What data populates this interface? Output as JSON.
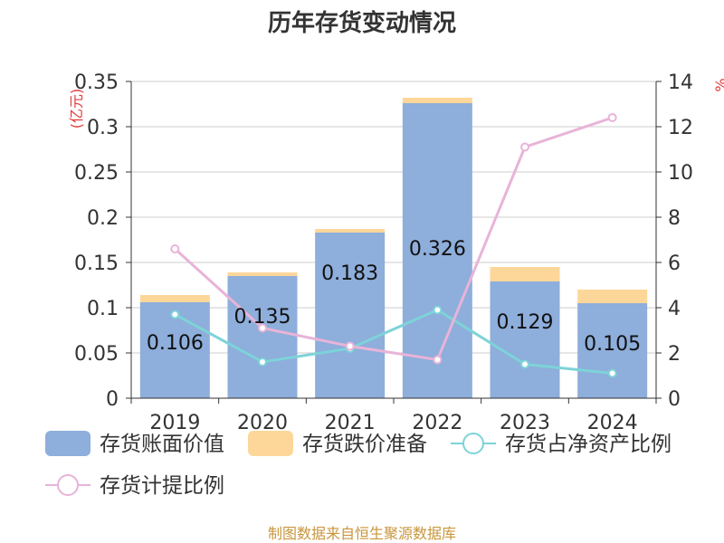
{
  "chart_data": {
    "type": "bar",
    "title": "历年存货变动情况",
    "unit_left": "(亿元)",
    "unit_right": "%",
    "categories": [
      "2019",
      "2020",
      "2021",
      "2022",
      "2023",
      "2024"
    ],
    "left_axis": {
      "ylim": [
        0,
        0.35
      ],
      "ticks": [
        "0",
        "0.05",
        "0.1",
        "0.15",
        "0.2",
        "0.25",
        "0.3",
        "0.35"
      ]
    },
    "right_axis": {
      "ylim": [
        0,
        14
      ],
      "ticks": [
        "0",
        "2",
        "4",
        "6",
        "8",
        "10",
        "12",
        "14"
      ]
    },
    "grid": true,
    "series": [
      {
        "name": "存货账面价值",
        "kind": "bar",
        "stack": "inv",
        "axis": "left",
        "color": "#8eaedb",
        "values": [
          0.106,
          0.135,
          0.183,
          0.326,
          0.129,
          0.105
        ],
        "labels": [
          "0.106",
          "0.135",
          "0.183",
          "0.326",
          "0.129",
          "0.105"
        ]
      },
      {
        "name": "存货跌价准备",
        "kind": "bar",
        "stack": "inv",
        "axis": "left",
        "color": "#fdd699",
        "values": [
          0.008,
          0.004,
          0.004,
          0.006,
          0.016,
          0.015
        ]
      },
      {
        "name": "存货占净资产比例",
        "kind": "line",
        "axis": "right",
        "color": "#7dd3d8",
        "values": [
          3.7,
          1.6,
          2.2,
          3.9,
          1.5,
          1.1
        ]
      },
      {
        "name": "存货计提比例",
        "kind": "line",
        "axis": "right",
        "color": "#e8b4d8",
        "values": [
          6.6,
          3.1,
          2.3,
          1.7,
          11.1,
          12.4
        ]
      }
    ],
    "legend_position": "bottom"
  },
  "source": "制图数据来自恒生聚源数据库"
}
